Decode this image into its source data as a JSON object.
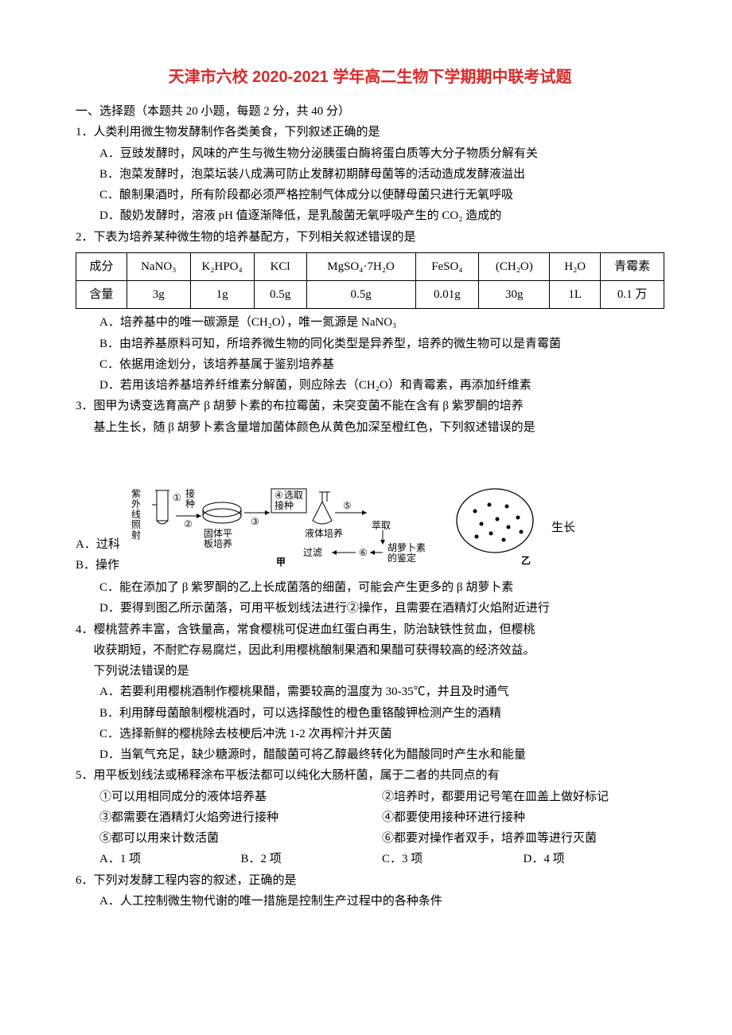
{
  "title": "天津市六校 2020-2021 学年高二生物下学期期中联考试题",
  "section1": "一、选择题（本题共 20 小题，每题 2 分，共 40 分）",
  "q1": {
    "num": "1．",
    "stem": "人类利用微生物发酵制作各类美食，下列叙述正确的是",
    "A": "A．豆豉发酵时，风味的产生与微生物分泌胰蛋白酶将蛋白质等大分子物质分解有关",
    "B": "B．泡菜发酵时，泡菜坛装八成满可防止发酵初期酵母菌等的活动造成发酵液溢出",
    "C": "C．酿制果酒时，所有阶段都必须严格控制气体成分以使酵母菌只进行无氧呼吸",
    "D": "D．酸奶发酵时，溶液 pH 值逐渐降低，是乳酸菌无氧呼吸产生的 CO₂ 造成的"
  },
  "q2": {
    "num": "2．",
    "stem": "下表为培养某种微生物的培养基配方，下列相关叙述错误的是",
    "table": {
      "h": [
        "成分",
        "NaNO₃",
        "K₂HPO₄",
        "KCl",
        "MgSO₄·7H₂O",
        "FeSO₄",
        "(CH₂O)",
        "H₂O",
        "青霉素"
      ],
      "r": [
        "含量",
        "3g",
        "1g",
        "0.5g",
        "0.5g",
        "0.01g",
        "30g",
        "1L",
        "0.1 万"
      ],
      "colw": [
        "56",
        "70",
        "70",
        "58",
        "120",
        "70",
        "78",
        "56",
        "70"
      ]
    },
    "A": "A．培养基中的唯一碳源是（CH₂O），唯一氮源是 NaNO₃",
    "B": "B．由培养基原料可知，所培养微生物的同化类型是异养型，培养的微生物可以是青霉菌",
    "C": "C．依据用途划分，该培养基属于鉴别培养基",
    "D": "D．若用该培养基培养纤维素分解菌，则应除去（CH₂O）和青霉素，再添加纤维素"
  },
  "q3": {
    "num": "3．",
    "stem1": "图甲为诱变选育高产 β 胡萝卜素的布拉霉菌，未突变菌不能在含有 β 紫罗酮的培养",
    "stem2": "基上生长，随 β 胡萝卜素含量增加菌体颜色从黄色加深至橙红色，下列叙述错误的是",
    "leftA": "A．过科",
    "leftB": "B．操作",
    "rlabel": "生长",
    "jia_labels": {
      "uv": "紫外线照射",
      "n1": "①",
      "jie": "接种",
      "n2": "②",
      "solid": "固体平板培养",
      "n4": "④",
      "xuan": "选取接种",
      "n3": "③",
      "liquid": "液体培养",
      "n5": "⑤",
      "cui": "萃取",
      "filt": "过滤",
      "n6": "⑥",
      "id": "胡萝卜素的鉴定",
      "cap": "甲"
    },
    "yi_cap": "乙",
    "C": "C．能在添加了 β 紫罗酮的乙上长成菌落的细菌，可能会产生更多的 β 胡萝卜素",
    "D": "D．要得到图乙所示菌落，可用平板划线法进行②操作，且需要在酒精灯火焰附近进行"
  },
  "q4": {
    "num": "4．",
    "stem1": "樱桃营养丰富，含铁量高，常食樱桃可促进血红蛋白再生，防治缺铁性贫血，但樱桃",
    "stem2": "收获期短，不耐贮存易腐烂，因此利用樱桃酿制果酒和果醋可获得较高的经济效益。",
    "stem3": "下列说法错误的是",
    "A": "A．若要利用樱桃酒制作樱桃果醋，需要较高的温度为 30-35℃，并且及时通气",
    "B": "B．利用酵母菌酿制樱桃酒时，可以选择酸性的橙色重铬酸钾检测产生的酒精",
    "C": "C．选择新鲜的樱桃除去枝梗后冲洗 1-2 次再榨汁并灭菌",
    "D": "D．当氧气充足，缺少糖源时，醋酸菌可将乙醇最终转化为醋酸同时产生水和能量"
  },
  "q5": {
    "num": "5．",
    "stem": "用平板划线法或稀释涂布平板法都可以纯化大肠杆菌，属于二者的共同点的有",
    "i1": "①可以用相同成分的液体培养基",
    "i2": "②培养时，都要用记号笔在皿盖上做好标记",
    "i3": "③都需要在酒精灯火焰旁进行接种",
    "i4": "④都要使用接种环进行接种",
    "i5": "⑤都可以用来计数活菌",
    "i6": "⑥都要对操作者双手，培养皿等进行灭菌",
    "A": "A．1 项",
    "B": "B．2 项",
    "C": "C．3 项",
    "D": "D．4 项"
  },
  "q6": {
    "num": "6．",
    "stem": "下列对发酵工程内容的叙述，正确的是",
    "A": "A．人工控制微生物代谢的唯一措施是控制生产过程中的各种条件"
  }
}
